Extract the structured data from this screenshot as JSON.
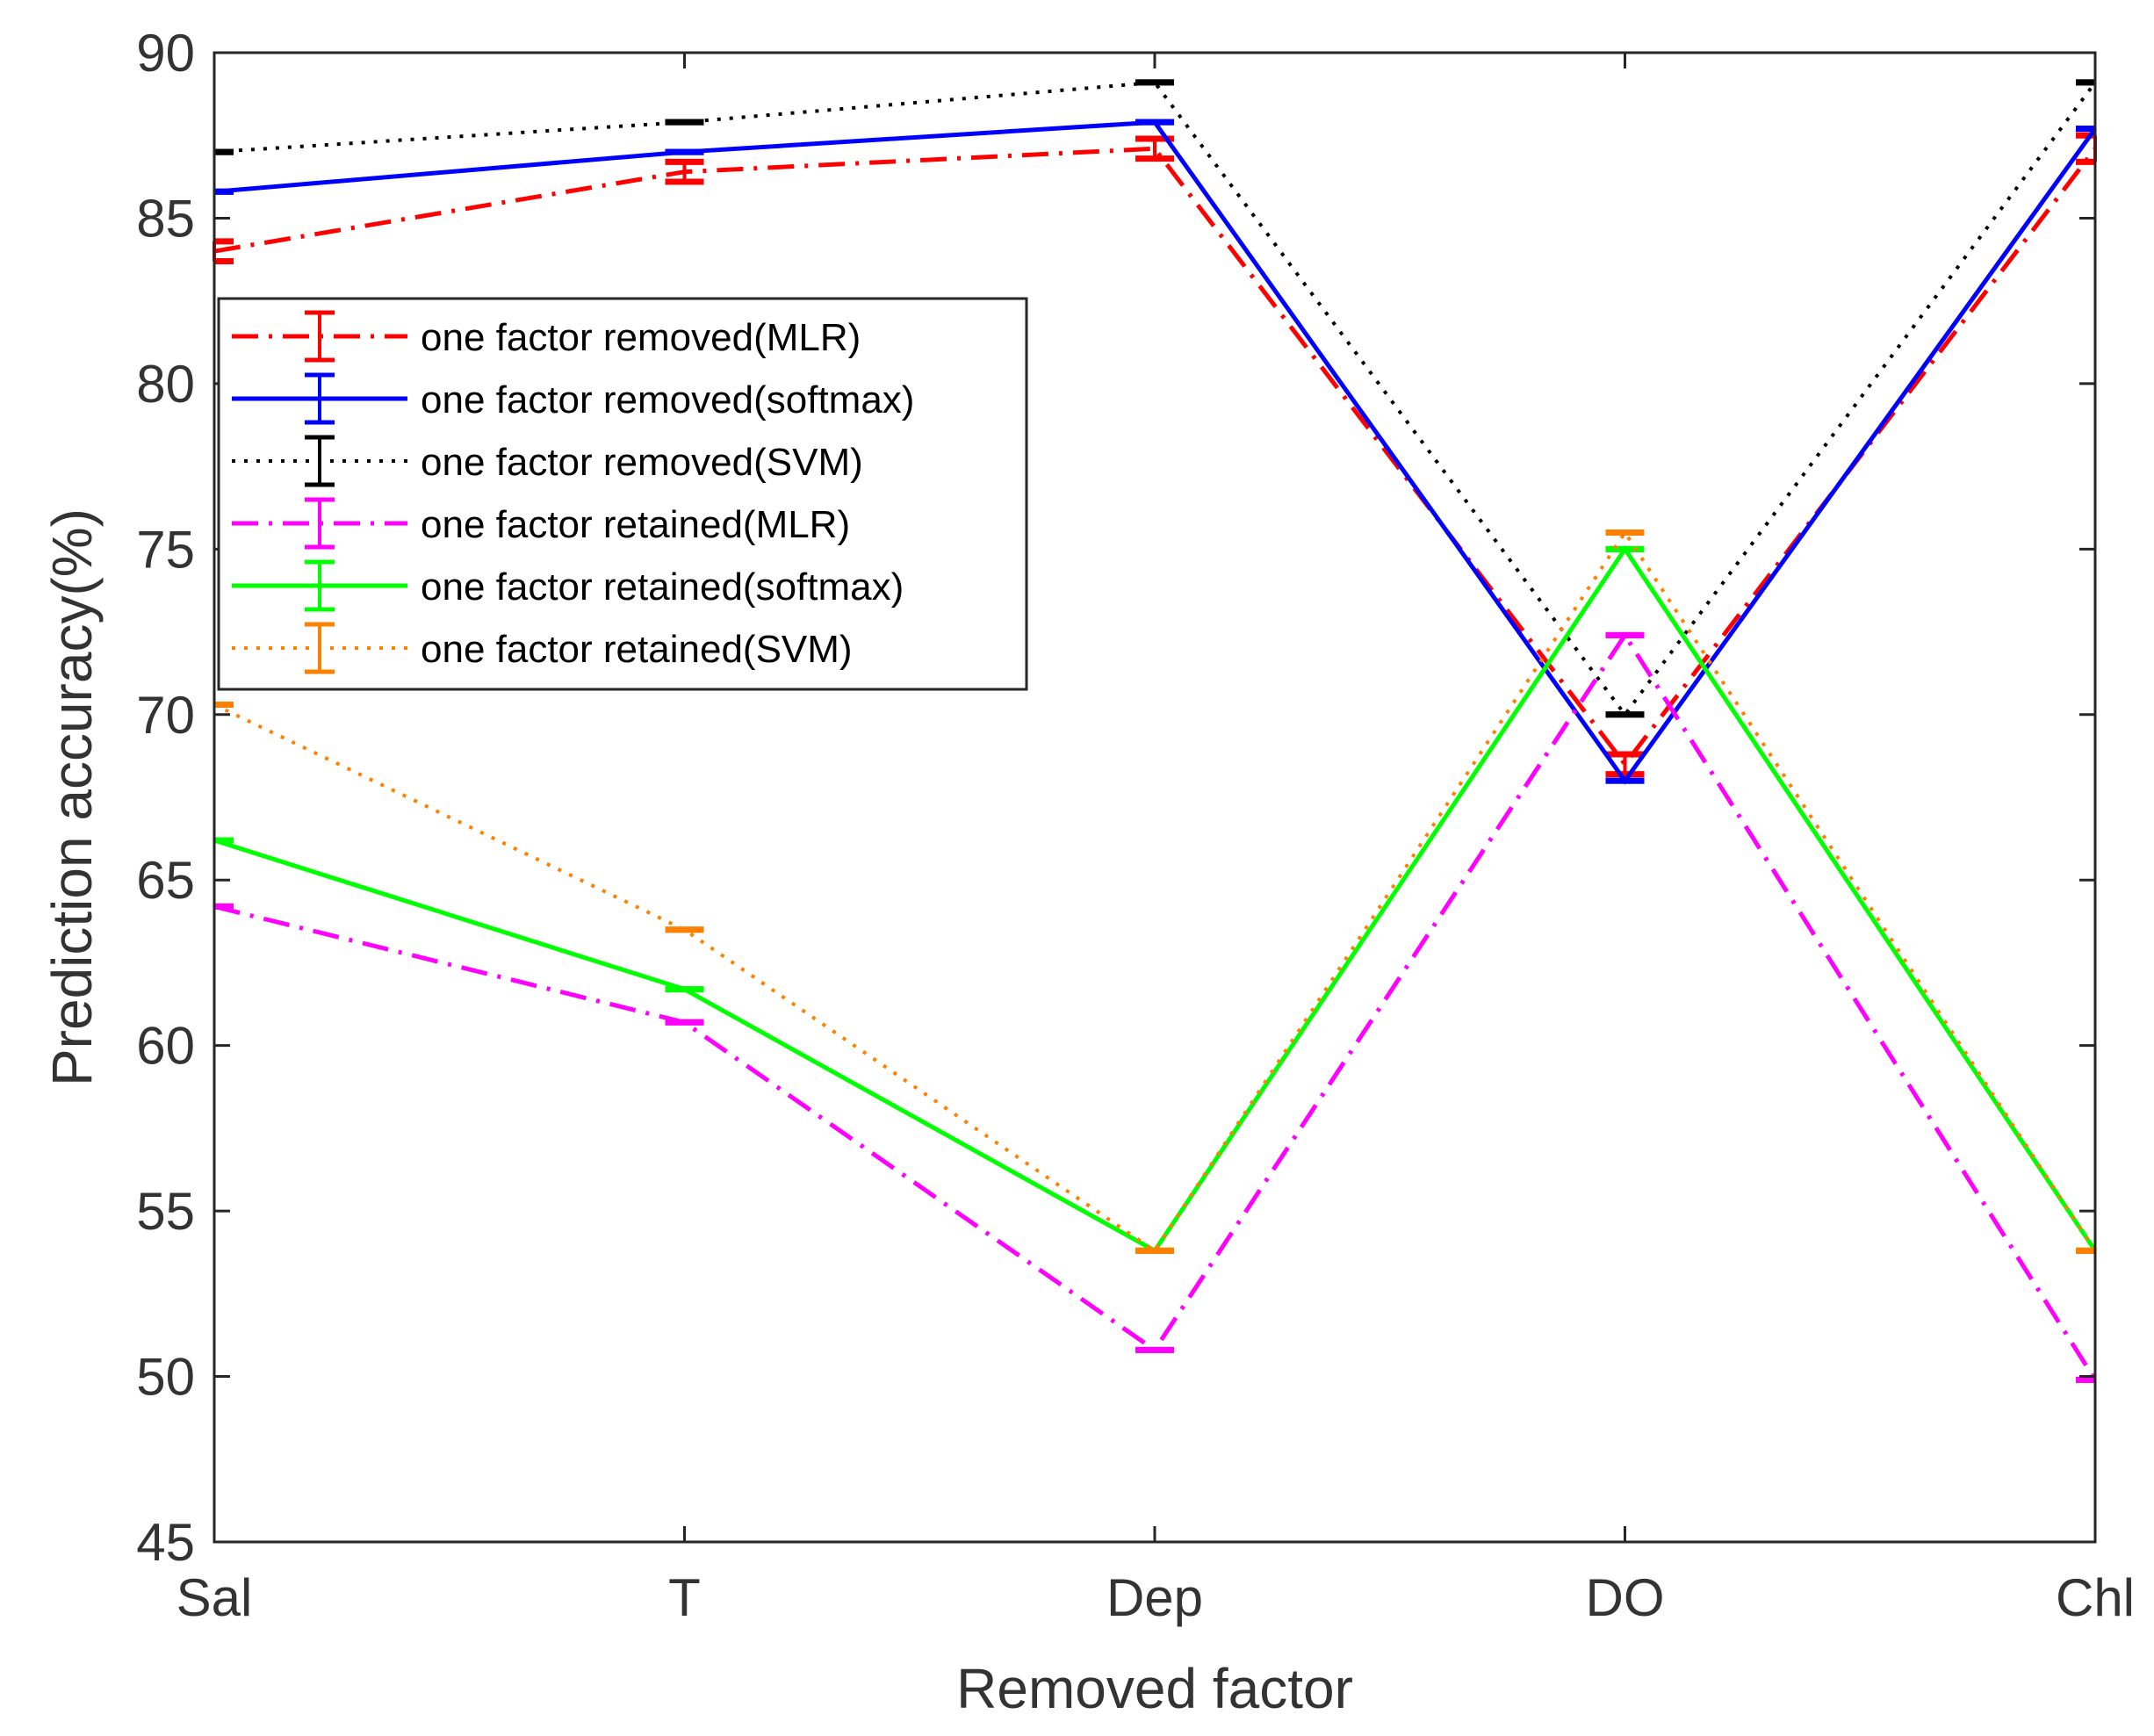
{
  "chart_data": {
    "type": "line",
    "title": "",
    "xlabel": "Removed factor",
    "ylabel": "Prediction accuracy(%)",
    "categories": [
      "Sal",
      "T",
      "Dep",
      "DO",
      "Chl"
    ],
    "ylim": [
      45,
      90
    ],
    "yticks": [
      45,
      50,
      55,
      60,
      65,
      70,
      75,
      80,
      85,
      90
    ],
    "ytick_labels": [
      "45",
      "50",
      "55",
      "60",
      "65",
      "70",
      "75",
      "80",
      "85",
      "90"
    ],
    "grid": false,
    "legend_position": "upper-left",
    "series": [
      {
        "name": "one factor removed(MLR)",
        "color": "#ff0000",
        "style": "dashdot",
        "values": [
          84.0,
          86.4,
          87.1,
          68.5,
          87.1
        ],
        "err": [
          0.3,
          0.3,
          0.3,
          0.3,
          0.4
        ]
      },
      {
        "name": "one factor removed(softmax)",
        "color": "#0000ff",
        "style": "solid",
        "values": [
          85.8,
          87.0,
          87.9,
          68.0,
          87.7
        ],
        "err": [
          0.0,
          0.0,
          0.0,
          0.0,
          0.0
        ]
      },
      {
        "name": "one factor removed(SVM)",
        "color": "#000000",
        "style": "dotted",
        "values": [
          87.0,
          87.9,
          89.1,
          70.0,
          89.1
        ],
        "err": [
          0.0,
          0.0,
          0.0,
          0.0,
          0.0
        ]
      },
      {
        "name": "one factor retained(MLR)",
        "color": "#ff00ff",
        "style": "dashdot",
        "values": [
          64.2,
          60.7,
          50.8,
          72.4,
          49.9
        ],
        "err": [
          0.0,
          0.0,
          0.0,
          0.0,
          0.0
        ]
      },
      {
        "name": "one factor retained(softmax)",
        "color": "#00ff00",
        "style": "solid",
        "values": [
          66.2,
          61.7,
          53.8,
          75.0,
          53.8
        ],
        "err": [
          0.0,
          0.0,
          0.0,
          0.0,
          0.0
        ]
      },
      {
        "name": "one factor retained(SVM)",
        "color": "#ff8000",
        "style": "dotted",
        "values": [
          70.3,
          63.5,
          53.8,
          75.5,
          53.8
        ],
        "err": [
          0.0,
          0.0,
          0.0,
          0.0,
          0.0
        ]
      }
    ]
  }
}
